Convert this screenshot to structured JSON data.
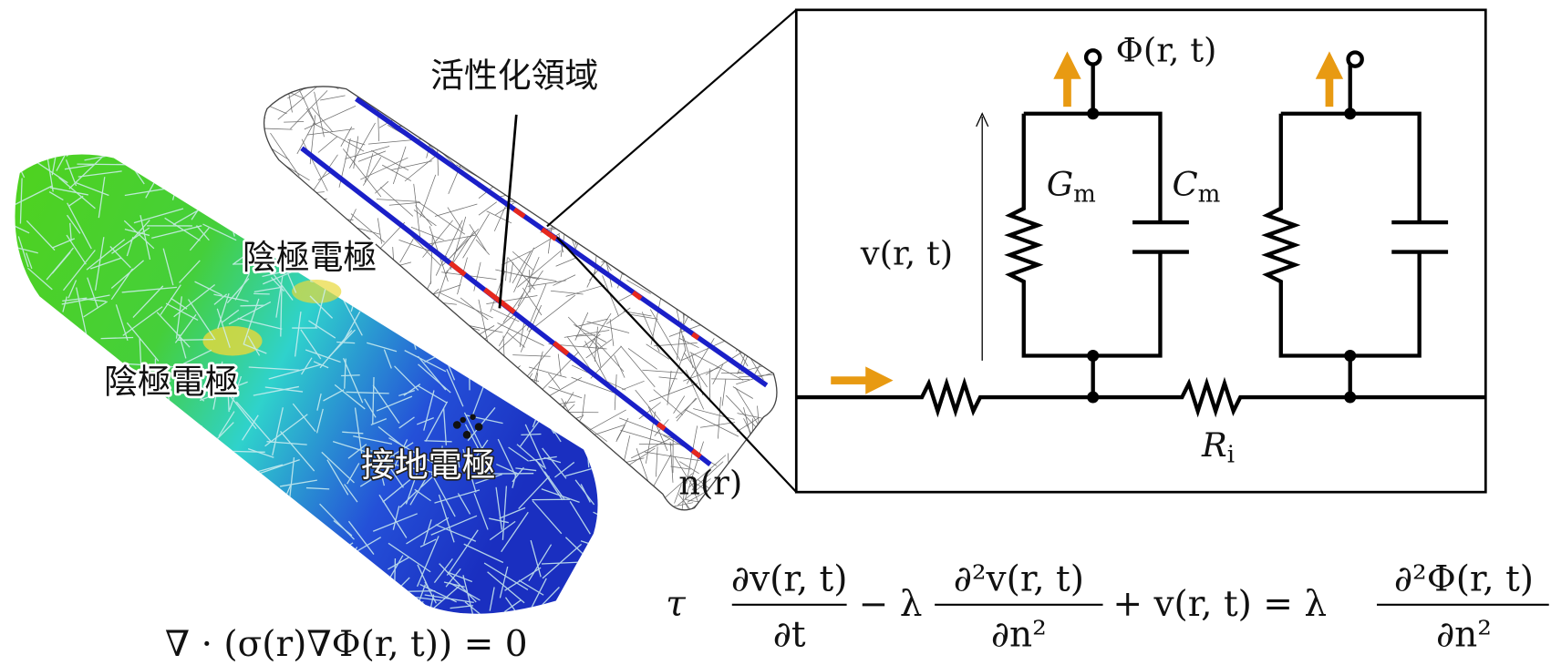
{
  "labels": {
    "active_region": "活性化領域",
    "cathode_upper": "陰極電極",
    "cathode_lower": "陰極電極",
    "ground": "接地電極",
    "fiber_coordinate": "n(r)"
  },
  "circuit": {
    "potential": "Φ(r, t)",
    "conductance": {
      "symbol": "G",
      "subscript": "m"
    },
    "capacitance": {
      "symbol": "C",
      "subscript": "m"
    },
    "membrane_voltage": "v(r, t)",
    "axial_resistance": {
      "symbol": "R",
      "subscript": "i"
    }
  },
  "equations": {
    "volume_conductor": "∇ · (σ(r)∇Φ(r, t)) = 0",
    "cable": {
      "tau": "τ",
      "frac1": {
        "num": "∂v(r, t)",
        "den": "∂t"
      },
      "minus": "− λ",
      "frac2": {
        "num": "∂²v(r, t)",
        "den": "∂n²"
      },
      "middle": "+ v(r, t) = λ",
      "frac3": {
        "num": "∂²Φ(r, t)",
        "den": "∂n²"
      }
    }
  }
}
